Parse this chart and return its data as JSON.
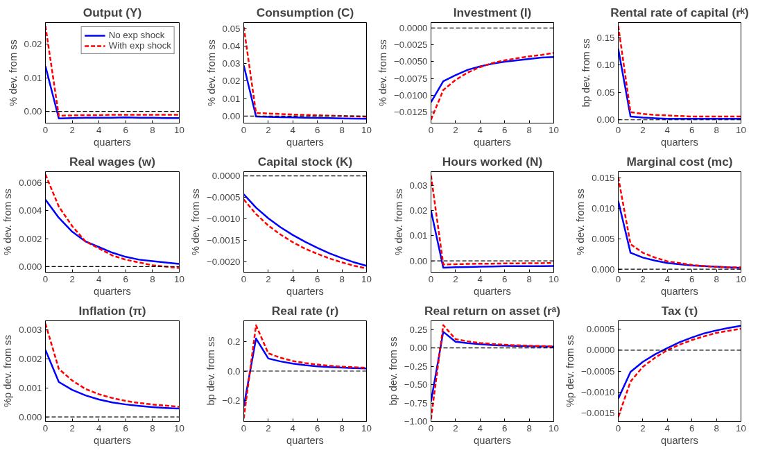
{
  "chart_data": [
    {
      "type": "line",
      "title": "Output (Y)",
      "xlabel": "quarters",
      "ylabel": "% dev. from ss",
      "x": [
        0,
        1,
        2,
        3,
        4,
        5,
        6,
        7,
        8,
        9,
        10
      ],
      "xlim": [
        0,
        10
      ],
      "xticks": [
        0,
        2,
        4,
        6,
        8,
        10
      ],
      "ylim": [
        -0.0035,
        0.0265
      ],
      "yticks": [
        {
          "value": 0,
          "label": "0.00"
        },
        {
          "value": 0.01,
          "label": "0.01"
        },
        {
          "value": 0.02,
          "label": "0.02"
        }
      ],
      "grid": false,
      "legend": "top right",
      "ref_lines": [
        {
          "axis": "y",
          "value": 0,
          "color": "#000000",
          "line_style": "dashed"
        }
      ],
      "series": [
        {
          "name": "No exp shock",
          "color": "#0000ff",
          "line_style": "solid",
          "values": [
            0.0135,
            -0.0021,
            -0.002,
            -0.0019,
            -0.0019,
            -0.0019,
            -0.0018,
            -0.0019,
            -0.0019,
            -0.002,
            -0.002
          ]
        },
        {
          "name": "With exp shock",
          "color": "#ff0000",
          "line_style": "dashed",
          "values": [
            0.0255,
            -0.0013,
            -0.0012,
            -0.0011,
            -0.0011,
            -0.001,
            -0.001,
            -0.001,
            -0.001,
            -0.001,
            -0.001
          ]
        }
      ]
    },
    {
      "type": "line",
      "title": "Consumption (C)",
      "xlabel": "quarters",
      "ylabel": "% dev. from ss",
      "x": [
        0,
        1,
        2,
        3,
        4,
        5,
        6,
        7,
        8,
        9,
        10
      ],
      "xlim": [
        0,
        10
      ],
      "xticks": [
        0,
        2,
        4,
        6,
        8,
        10
      ],
      "ylim": [
        -0.004,
        0.0535
      ],
      "yticks": [
        {
          "value": 0,
          "label": "0.00"
        },
        {
          "value": 0.01,
          "label": "0.01"
        },
        {
          "value": 0.02,
          "label": "0.02"
        },
        {
          "value": 0.03,
          "label": "0.03"
        },
        {
          "value": 0.04,
          "label": "0.04"
        },
        {
          "value": 0.05,
          "label": "0.05"
        }
      ],
      "grid": false,
      "ref_lines": [
        {
          "axis": "y",
          "value": 0,
          "color": "#000000",
          "line_style": "dashed"
        }
      ],
      "series": [
        {
          "color": "#0000ff",
          "line_style": "solid",
          "values": [
            0.029,
            -0.0002,
            -0.0004,
            -0.0006,
            -0.0007,
            -0.0009,
            -0.001,
            -0.0011,
            -0.0013,
            -0.0014,
            -0.0015
          ]
        },
        {
          "color": "#ff0000",
          "line_style": "dashed",
          "values": [
            0.051,
            0.0018,
            0.0015,
            0.0012,
            0.0009,
            0.0007,
            0.0005,
            0.0003,
            0.0001,
            -0.0001,
            -0.0003
          ]
        }
      ]
    },
    {
      "type": "line",
      "title": "Investment (I)",
      "xlabel": "quarters",
      "ylabel": "% dev. from ss",
      "x": [
        0,
        1,
        2,
        3,
        4,
        5,
        6,
        7,
        8,
        9,
        10
      ],
      "xlim": [
        0,
        10
      ],
      "xticks": [
        0,
        2,
        4,
        6,
        8,
        10
      ],
      "ylim": [
        -0.0141,
        0.0008
      ],
      "yticks": [
        {
          "value": 0,
          "label": "0.0000"
        },
        {
          "value": -0.0025,
          "label": "−0.0025"
        },
        {
          "value": -0.005,
          "label": "−0.0050"
        },
        {
          "value": -0.0075,
          "label": "−0.0075"
        },
        {
          "value": -0.01,
          "label": "−0.0100"
        },
        {
          "value": -0.0125,
          "label": "−0.0125"
        }
      ],
      "grid": false,
      "ref_lines": [
        {
          "axis": "y",
          "value": 0,
          "color": "#000000",
          "line_style": "dashed"
        }
      ],
      "series": [
        {
          "color": "#0000ff",
          "line_style": "solid",
          "values": [
            -0.011,
            -0.0079,
            -0.007,
            -0.0062,
            -0.0057,
            -0.0053,
            -0.005,
            -0.0048,
            -0.0046,
            -0.0044,
            -0.0043
          ]
        },
        {
          "color": "#ff0000",
          "line_style": "dashed",
          "values": [
            -0.0136,
            -0.0092,
            -0.0077,
            -0.0066,
            -0.0058,
            -0.0052,
            -0.0048,
            -0.0045,
            -0.0042,
            -0.004,
            -0.0037
          ]
        }
      ]
    },
    {
      "type": "line",
      "title": "Rental rate of capital (rᵏ)",
      "xlabel": "quarters",
      "ylabel": "bp dev. from ss",
      "x": [
        0,
        1,
        2,
        3,
        4,
        5,
        6,
        7,
        8,
        9,
        10
      ],
      "xlim": [
        0,
        10
      ],
      "xticks": [
        0,
        2,
        4,
        6,
        8,
        10
      ],
      "ylim": [
        -0.006,
        0.178
      ],
      "yticks": [
        {
          "value": 0,
          "label": "0.00"
        },
        {
          "value": 0.05,
          "label": "0.05"
        },
        {
          "value": 0.1,
          "label": "0.10"
        },
        {
          "value": 0.15,
          "label": "0.15"
        }
      ],
      "grid": false,
      "ref_lines": [
        {
          "axis": "y",
          "value": 0,
          "color": "#000000",
          "line_style": "dashed"
        }
      ],
      "series": [
        {
          "color": "#0000ff",
          "line_style": "solid",
          "values": [
            0.13,
            0.006,
            0.004,
            0.003,
            0.002,
            0.002,
            0.002,
            0.002,
            0.002,
            0.002,
            0.002
          ]
        },
        {
          "color": "#ff0000",
          "line_style": "dashed",
          "values": [
            0.172,
            0.014,
            0.011,
            0.009,
            0.008,
            0.007,
            0.006,
            0.006,
            0.006,
            0.006,
            0.006
          ]
        }
      ]
    },
    {
      "type": "line",
      "title": "Real wages (w)",
      "xlabel": "quarters",
      "ylabel": "% dev. from ss",
      "x": [
        0,
        1,
        2,
        3,
        4,
        5,
        6,
        7,
        8,
        9,
        10
      ],
      "xlim": [
        0,
        10
      ],
      "xticks": [
        0,
        2,
        4,
        6,
        8,
        10
      ],
      "ylim": [
        -0.0004,
        0.0068
      ],
      "yticks": [
        {
          "value": 0,
          "label": "0.000"
        },
        {
          "value": 0.002,
          "label": "0.002"
        },
        {
          "value": 0.004,
          "label": "0.004"
        },
        {
          "value": 0.006,
          "label": "0.006"
        }
      ],
      "grid": false,
      "ref_lines": [
        {
          "axis": "y",
          "value": 0,
          "color": "#000000",
          "line_style": "dashed"
        }
      ],
      "series": [
        {
          "color": "#0000ff",
          "line_style": "solid",
          "values": [
            0.0048,
            0.0035,
            0.0025,
            0.0018,
            0.0014,
            0.001,
            0.0007,
            0.0005,
            0.0004,
            0.0003,
            0.0002
          ]
        },
        {
          "color": "#ff0000",
          "line_style": "dashed",
          "values": [
            0.0066,
            0.0043,
            0.0029,
            0.0018,
            0.0013,
            0.0008,
            0.0005,
            0.0003,
            0.0001,
            0.0,
            -0.0001
          ]
        }
      ]
    },
    {
      "type": "line",
      "title": "Capital stock (K)",
      "xlabel": "quarters",
      "ylabel": "% dev. from ss",
      "x": [
        0,
        1,
        2,
        3,
        4,
        5,
        6,
        7,
        8,
        9,
        10
      ],
      "xlim": [
        0,
        10
      ],
      "xticks": [
        0,
        2,
        4,
        6,
        8,
        10
      ],
      "ylim": [
        -0.00225,
        0.0001
      ],
      "yticks": [
        {
          "value": 0,
          "label": "0.0000"
        },
        {
          "value": -0.0005,
          "label": "−0.0005"
        },
        {
          "value": -0.001,
          "label": "−0.0010"
        },
        {
          "value": -0.0015,
          "label": "−0.0015"
        },
        {
          "value": -0.002,
          "label": "−0.0020"
        }
      ],
      "grid": false,
      "ref_lines": [
        {
          "axis": "y",
          "value": 0,
          "color": "#000000",
          "line_style": "dashed"
        }
      ],
      "series": [
        {
          "color": "#0000ff",
          "line_style": "solid",
          "values": [
            -0.00043,
            -0.00074,
            -0.00099,
            -0.0012,
            -0.00138,
            -0.00154,
            -0.00168,
            -0.00181,
            -0.00192,
            -0.00202,
            -0.0021
          ]
        },
        {
          "color": "#ff0000",
          "line_style": "dashed",
          "values": [
            -0.00055,
            -0.00089,
            -0.00116,
            -0.00137,
            -0.00155,
            -0.0017,
            -0.00182,
            -0.00193,
            -0.00202,
            -0.0021,
            -0.00216
          ]
        }
      ]
    },
    {
      "type": "line",
      "title": "Hours worked (N)",
      "xlabel": "quarters",
      "ylabel": "% dev. from ss",
      "x": [
        0,
        1,
        2,
        3,
        4,
        5,
        6,
        7,
        8,
        9,
        10
      ],
      "xlim": [
        0,
        10
      ],
      "xticks": [
        0,
        2,
        4,
        6,
        8,
        10
      ],
      "ylim": [
        -0.0045,
        0.0355
      ],
      "yticks": [
        {
          "value": 0,
          "label": "0.00"
        },
        {
          "value": 0.01,
          "label": "0.01"
        },
        {
          "value": 0.02,
          "label": "0.02"
        },
        {
          "value": 0.03,
          "label": "0.03"
        }
      ],
      "grid": false,
      "ref_lines": [
        {
          "axis": "y",
          "value": 0,
          "color": "#000000",
          "line_style": "dashed"
        }
      ],
      "series": [
        {
          "color": "#0000ff",
          "line_style": "solid",
          "values": [
            0.02,
            -0.0027,
            -0.0025,
            -0.0024,
            -0.0023,
            -0.0022,
            -0.0021,
            -0.0021,
            -0.0021,
            -0.0021,
            -0.002
          ]
        },
        {
          "color": "#ff0000",
          "line_style": "dashed",
          "values": [
            0.034,
            -0.0014,
            -0.0013,
            -0.0012,
            -0.0011,
            -0.0011,
            -0.001,
            -0.001,
            -0.0009,
            -0.0009,
            -0.0008
          ]
        }
      ]
    },
    {
      "type": "line",
      "title": "Marginal cost (mc)",
      "xlabel": "quarters",
      "ylabel": "% dev. from ss",
      "x": [
        0,
        1,
        2,
        3,
        4,
        5,
        6,
        7,
        8,
        9,
        10
      ],
      "xlim": [
        0,
        10
      ],
      "xticks": [
        0,
        2,
        4,
        6,
        8,
        10
      ],
      "ylim": [
        -0.0005,
        0.016
      ],
      "yticks": [
        {
          "value": 0,
          "label": "0.000"
        },
        {
          "value": 0.005,
          "label": "0.005"
        },
        {
          "value": 0.01,
          "label": "0.010"
        },
        {
          "value": 0.015,
          "label": "0.015"
        }
      ],
      "grid": false,
      "ref_lines": [
        {
          "axis": "y",
          "value": 0,
          "color": "#000000",
          "line_style": "dashed"
        }
      ],
      "series": [
        {
          "color": "#0000ff",
          "line_style": "solid",
          "values": [
            0.0112,
            0.0027,
            0.0019,
            0.0014,
            0.001,
            0.0008,
            0.0006,
            0.0005,
            0.0004,
            0.0003,
            0.0002
          ]
        },
        {
          "color": "#ff0000",
          "line_style": "dashed",
          "values": [
            0.0151,
            0.0041,
            0.0027,
            0.0019,
            0.0013,
            0.001,
            0.0007,
            0.0005,
            0.0004,
            0.0003,
            0.0003
          ]
        }
      ]
    },
    {
      "type": "line",
      "title": "Inflation (π)",
      "xlabel": "quarters",
      "ylabel": "%p dev. from ss",
      "x": [
        0,
        1,
        2,
        3,
        4,
        5,
        6,
        7,
        8,
        9,
        10
      ],
      "xlim": [
        0,
        10
      ],
      "xticks": [
        0,
        2,
        4,
        6,
        8,
        10
      ],
      "ylim": [
        -0.00015,
        0.0033
      ],
      "yticks": [
        {
          "value": 0,
          "label": "0.000"
        },
        {
          "value": 0.001,
          "label": "0.001"
        },
        {
          "value": 0.002,
          "label": "0.002"
        },
        {
          "value": 0.003,
          "label": "0.003"
        }
      ],
      "grid": false,
      "ref_lines": [
        {
          "axis": "y",
          "value": 0,
          "color": "#000000",
          "line_style": "dashed"
        }
      ],
      "series": [
        {
          "color": "#0000ff",
          "line_style": "solid",
          "values": [
            0.0023,
            0.0012,
            0.00093,
            0.00074,
            0.0006,
            0.0005,
            0.00043,
            0.00038,
            0.00034,
            0.00031,
            0.00029
          ]
        },
        {
          "color": "#ff0000",
          "line_style": "dashed",
          "values": [
            0.0032,
            0.00165,
            0.00125,
            0.00096,
            0.00078,
            0.00065,
            0.00055,
            0.00048,
            0.00043,
            0.00039,
            0.00035
          ]
        }
      ]
    },
    {
      "type": "line",
      "title": "Real rate (r)",
      "xlabel": "quarters",
      "ylabel": "bp dev. from ss",
      "x": [
        0,
        1,
        2,
        3,
        4,
        5,
        6,
        7,
        8,
        9,
        10
      ],
      "xlim": [
        0,
        10
      ],
      "xticks": [
        0,
        2,
        4,
        6,
        8,
        10
      ],
      "ylim": [
        -0.34,
        0.34
      ],
      "yticks": [
        {
          "value": -0.2,
          "label": "−0.2"
        },
        {
          "value": 0,
          "label": "0.0"
        },
        {
          "value": 0.2,
          "label": "0.2"
        }
      ],
      "grid": false,
      "ref_lines": [
        {
          "axis": "y",
          "value": 0,
          "color": "#000000",
          "line_style": "dashed"
        }
      ],
      "series": [
        {
          "color": "#0000ff",
          "line_style": "solid",
          "values": [
            -0.24,
            0.22,
            0.085,
            0.065,
            0.05,
            0.04,
            0.032,
            0.027,
            0.023,
            0.02,
            0.018
          ]
        },
        {
          "color": "#ff0000",
          "line_style": "dashed",
          "values": [
            -0.32,
            0.31,
            0.12,
            0.09,
            0.068,
            0.054,
            0.044,
            0.036,
            0.03,
            0.026,
            0.022
          ]
        }
      ]
    },
    {
      "type": "line",
      "title": "Real return on asset (rᵃ)",
      "xlabel": "quarters",
      "ylabel": "bp dev. from ss",
      "x": [
        0,
        1,
        2,
        3,
        4,
        5,
        6,
        7,
        8,
        9,
        10
      ],
      "xlim": [
        0,
        10
      ],
      "xticks": [
        0,
        2,
        4,
        6,
        8,
        10
      ],
      "ylim": [
        -1.0,
        0.37
      ],
      "yticks": [
        {
          "value": -1,
          "label": "−1.00"
        },
        {
          "value": -0.75,
          "label": "−0.75"
        },
        {
          "value": -0.5,
          "label": "−0.50"
        },
        {
          "value": -0.25,
          "label": "−0.25"
        },
        {
          "value": 0,
          "label": "0.00"
        },
        {
          "value": 0.25,
          "label": "0.25"
        }
      ],
      "grid": false,
      "ref_lines": [
        {
          "axis": "y",
          "value": 0,
          "color": "#000000",
          "line_style": "dashed"
        }
      ],
      "series": [
        {
          "color": "#0000ff",
          "line_style": "solid",
          "values": [
            -0.73,
            0.22,
            0.085,
            0.065,
            0.05,
            0.04,
            0.032,
            0.027,
            0.023,
            0.02,
            0.018
          ]
        },
        {
          "color": "#ff0000",
          "line_style": "dashed",
          "values": [
            -0.97,
            0.31,
            0.12,
            0.09,
            0.068,
            0.054,
            0.044,
            0.036,
            0.03,
            0.026,
            0.022
          ]
        }
      ]
    },
    {
      "type": "line",
      "title": "Tax (τ)",
      "xlabel": "quarters",
      "ylabel": "%p dev. from ss",
      "x": [
        0,
        1,
        2,
        3,
        4,
        5,
        6,
        7,
        8,
        9,
        10
      ],
      "xlim": [
        0,
        10
      ],
      "xticks": [
        0,
        2,
        4,
        6,
        8,
        10
      ],
      "ylim": [
        -0.0017,
        0.0007
      ],
      "yticks": [
        {
          "value": -0.0015,
          "label": "−0.0015"
        },
        {
          "value": -0.001,
          "label": "−0.0010"
        },
        {
          "value": -0.0005,
          "label": "−0.0005"
        },
        {
          "value": 0,
          "label": "0.0000"
        },
        {
          "value": 0.0005,
          "label": "0.0005"
        }
      ],
      "grid": false,
      "ref_lines": [
        {
          "axis": "y",
          "value": 0,
          "color": "#000000",
          "line_style": "dashed"
        }
      ],
      "series": [
        {
          "color": "#0000ff",
          "line_style": "solid",
          "values": [
            -0.00116,
            -0.00052,
            -0.00028,
            -0.0001,
            5e-05,
            0.00019,
            0.0003,
            0.0004,
            0.00047,
            0.00053,
            0.00058
          ]
        },
        {
          "color": "#ff0000",
          "line_style": "dashed",
          "values": [
            -0.0016,
            -0.00075,
            -0.0004,
            -0.00018,
            0.0,
            0.00013,
            0.00024,
            0.00033,
            0.00041,
            0.00046,
            0.00051
          ]
        }
      ]
    }
  ]
}
